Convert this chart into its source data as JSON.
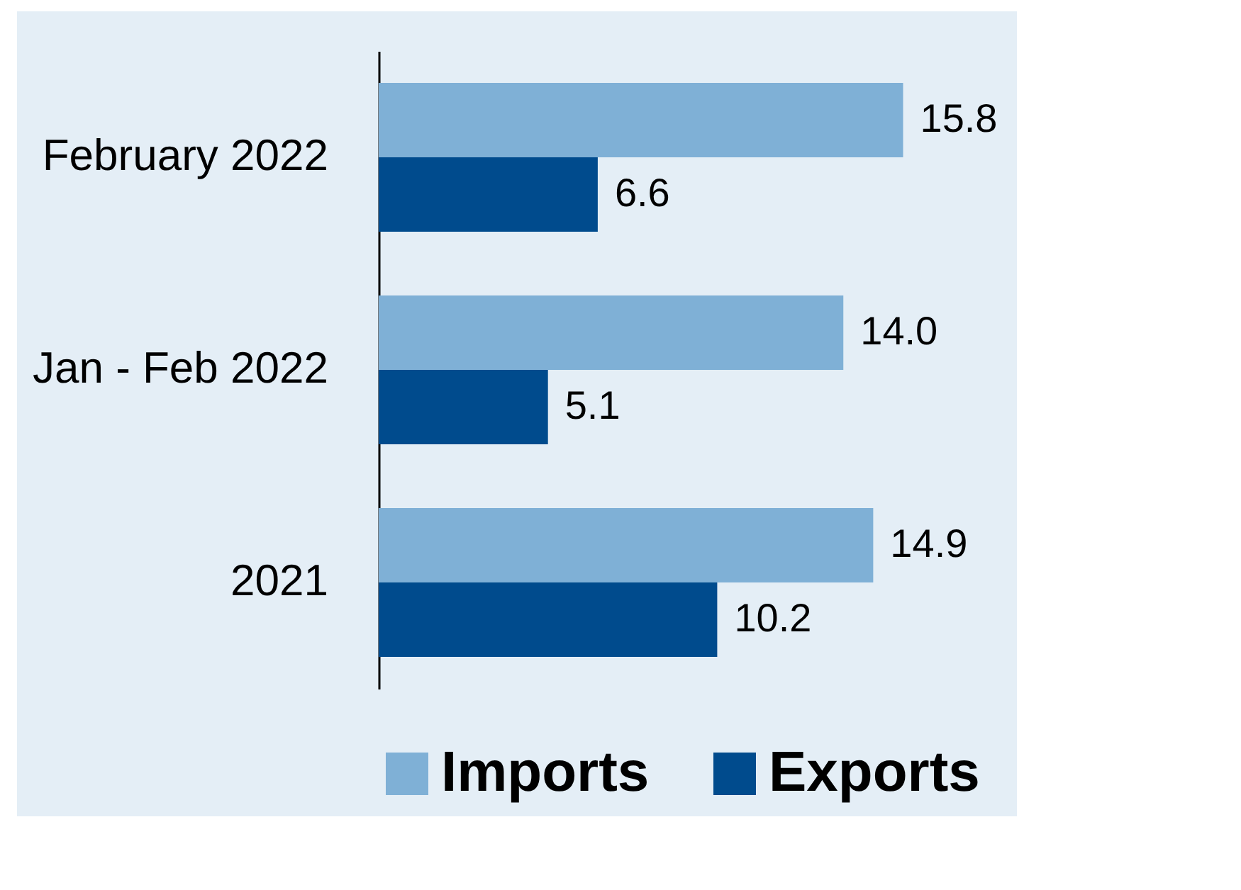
{
  "chart_data": {
    "type": "bar",
    "orientation": "horizontal",
    "categories": [
      "February 2022",
      "Jan - Feb 2022",
      "2021"
    ],
    "series": [
      {
        "name": "Imports",
        "color": "#7fb0d6",
        "values": [
          15.8,
          14.0,
          14.9
        ],
        "value_labels": [
          "15.8",
          "14.0",
          "14.9"
        ]
      },
      {
        "name": "Exports",
        "color": "#004b8d",
        "values": [
          6.6,
          5.1,
          10.2
        ],
        "value_labels": [
          "6.6",
          "5.1",
          "10.2"
        ]
      }
    ],
    "legend": "bottom",
    "tick_labels": "y"
  }
}
